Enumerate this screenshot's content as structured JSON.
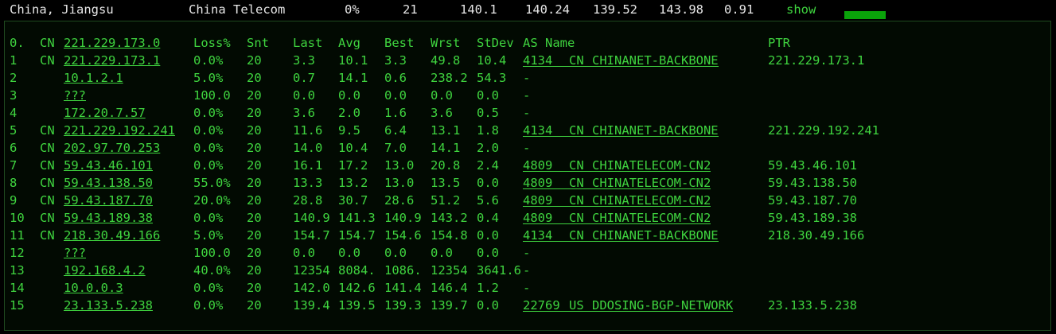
{
  "summary": {
    "location": "China, Jiangsu",
    "isp": "China Telecom",
    "loss": "0%",
    "sent": "21",
    "last": "140.1",
    "avg": "140.24",
    "best": "139.52",
    "worst": "143.98",
    "stdev": "0.91",
    "toggle": "show"
  },
  "table": {
    "header": {
      "hop": "0.",
      "cc": "CN",
      "host": "221.229.173.0",
      "loss": "Loss%",
      "snt": "Snt",
      "last": "Last",
      "avg": "Avg",
      "best": "Best",
      "wrst": "Wrst",
      "stdev": "StDev",
      "as": "AS Name",
      "ptr": "PTR"
    },
    "rows": [
      {
        "hop": "1",
        "cc": "CN",
        "host": "221.229.173.1",
        "loss": "0.0%",
        "snt": "20",
        "last": "3.3",
        "avg": "10.1",
        "best": "3.3",
        "wrst": "49.8",
        "stdev": "10.4",
        "asn": "4134",
        "as_cc": "CN",
        "as_name": "CHINANET-BACKBONE",
        "ptr": "221.229.173.1"
      },
      {
        "hop": "2",
        "host": "10.1.2.1",
        "loss": "5.0%",
        "snt": "20",
        "last": "0.7",
        "avg": "14.1",
        "best": "0.6",
        "wrst": "238.2",
        "stdev": "54.3",
        "asn": "-"
      },
      {
        "hop": "3",
        "host": "???",
        "loss": "100.0",
        "snt": "20",
        "last": "0.0",
        "avg": "0.0",
        "best": "0.0",
        "wrst": "0.0",
        "stdev": "0.0",
        "asn": "-"
      },
      {
        "hop": "4",
        "host": "172.20.7.57",
        "loss": "0.0%",
        "snt": "20",
        "last": "3.6",
        "avg": "2.0",
        "best": "1.6",
        "wrst": "3.6",
        "stdev": "0.5",
        "asn": "-"
      },
      {
        "hop": "5",
        "cc": "CN",
        "host": "221.229.192.241",
        "loss": "0.0%",
        "snt": "20",
        "last": "11.6",
        "avg": "9.5",
        "best": "6.4",
        "wrst": "13.1",
        "stdev": "1.8",
        "asn": "4134",
        "as_cc": "CN",
        "as_name": "CHINANET-BACKBONE",
        "ptr": "221.229.192.241"
      },
      {
        "hop": "6",
        "cc": "CN",
        "host": "202.97.70.253",
        "loss": "0.0%",
        "snt": "20",
        "last": "14.0",
        "avg": "10.4",
        "best": "7.0",
        "wrst": "14.1",
        "stdev": "2.0",
        "asn": "-"
      },
      {
        "hop": "7",
        "cc": "CN",
        "host": "59.43.46.101",
        "loss": "0.0%",
        "snt": "20",
        "last": "16.1",
        "avg": "17.2",
        "best": "13.0",
        "wrst": "20.8",
        "stdev": "2.4",
        "asn": "4809",
        "as_cc": "CN",
        "as_name": "CHINATELECOM-CN2",
        "ptr": "59.43.46.101"
      },
      {
        "hop": "8",
        "cc": "CN",
        "host": "59.43.138.50",
        "loss": "55.0%",
        "snt": "20",
        "last": "13.3",
        "avg": "13.2",
        "best": "13.0",
        "wrst": "13.5",
        "stdev": "0.0",
        "asn": "4809",
        "as_cc": "CN",
        "as_name": "CHINATELECOM-CN2",
        "ptr": "59.43.138.50"
      },
      {
        "hop": "9",
        "cc": "CN",
        "host": "59.43.187.70",
        "loss": "20.0%",
        "snt": "20",
        "last": "28.8",
        "avg": "30.7",
        "best": "28.6",
        "wrst": "51.2",
        "stdev": "5.6",
        "asn": "4809",
        "as_cc": "CN",
        "as_name": "CHINATELECOM-CN2",
        "ptr": "59.43.187.70"
      },
      {
        "hop": "10",
        "cc": "CN",
        "host": "59.43.189.38",
        "loss": "0.0%",
        "snt": "20",
        "last": "140.9",
        "avg": "141.3",
        "best": "140.9",
        "wrst": "143.2",
        "stdev": "0.4",
        "asn": "4809",
        "as_cc": "CN",
        "as_name": "CHINATELECOM-CN2",
        "ptr": "59.43.189.38"
      },
      {
        "hop": "11",
        "cc": "CN",
        "host": "218.30.49.166",
        "loss": "5.0%",
        "snt": "20",
        "last": "154.7",
        "avg": "154.7",
        "best": "154.6",
        "wrst": "154.8",
        "stdev": "0.0",
        "asn": "4134",
        "as_cc": "CN",
        "as_name": "CHINANET-BACKBONE",
        "ptr": "218.30.49.166"
      },
      {
        "hop": "12",
        "host": "???",
        "loss": "100.0",
        "snt": "20",
        "last": "0.0",
        "avg": "0.0",
        "best": "0.0",
        "wrst": "0.0",
        "stdev": "0.0",
        "asn": "-"
      },
      {
        "hop": "13",
        "host": "192.168.4.2",
        "loss": "40.0%",
        "snt": "20",
        "last": "12354",
        "avg": "8084.",
        "best": "1086.",
        "wrst": "12354",
        "stdev": "3641.6",
        "asn": "-"
      },
      {
        "hop": "14",
        "host": "10.0.0.3",
        "loss": "0.0%",
        "snt": "20",
        "last": "142.0",
        "avg": "142.6",
        "best": "141.4",
        "wrst": "146.4",
        "stdev": "1.2",
        "asn": "-"
      },
      {
        "hop": "15",
        "host": "23.133.5.238",
        "loss": "0.0%",
        "snt": "20",
        "last": "139.4",
        "avg": "139.5",
        "best": "139.3",
        "wrst": "139.7",
        "stdev": "0.0",
        "asn": "22769",
        "as_cc": "US",
        "as_name": "DDOSING-BGP-NETWORK",
        "ptr": "23.133.5.238"
      }
    ]
  }
}
